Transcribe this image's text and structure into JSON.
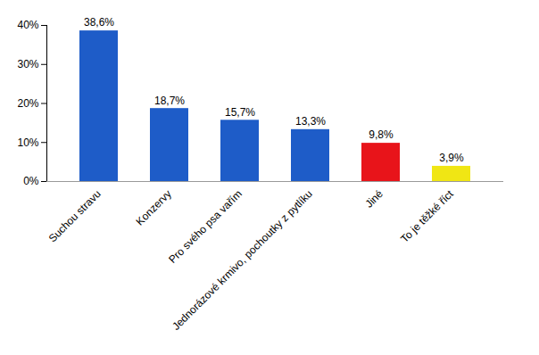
{
  "chart_data": {
    "type": "bar",
    "categories": [
      "Suchou stravu",
      "Konzervy",
      "Pro svého psa vařím",
      "Jednorázové krmivo, pochoutky z pytlíku",
      "Jiné",
      "To je těžké říct"
    ],
    "values": [
      38.6,
      18.7,
      15.7,
      13.3,
      9.8,
      3.9
    ],
    "value_labels": [
      "38,6%",
      "18,7%",
      "15,7%",
      "13,3%",
      "9,8%",
      "3,9%"
    ],
    "colors": [
      "#1e5cc8",
      "#1e5cc8",
      "#1e5cc8",
      "#1e5cc8",
      "#e8141a",
      "#f0e614"
    ],
    "ylim": [
      0,
      40
    ],
    "yticks": [
      {
        "value": 0,
        "label": "0%"
      },
      {
        "value": 10,
        "label": "10%"
      },
      {
        "value": 20,
        "label": "20%"
      },
      {
        "value": 30,
        "label": "30%"
      },
      {
        "value": 40,
        "label": "40%"
      }
    ],
    "grid": false,
    "data_labels": true
  }
}
